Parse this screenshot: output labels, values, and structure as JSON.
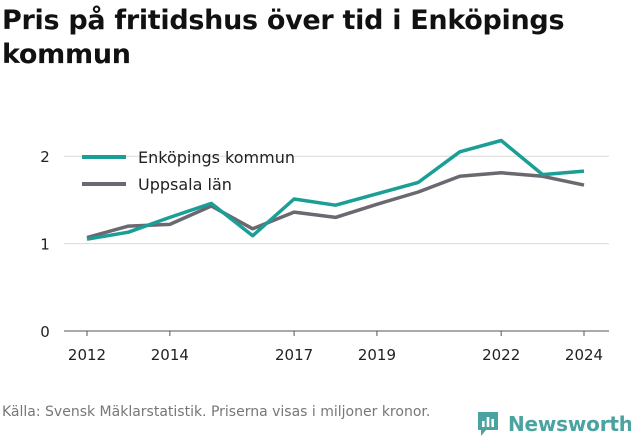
{
  "header": {
    "title": "Pris på fritidshus över tid i Enköpings kommun"
  },
  "footer": {
    "source": "Källa: Svensk Mäklarstatistik. Priserna visas i miljoner kronor."
  },
  "brand": {
    "name": "Newsworthy",
    "icon": "newsworthy-logo-icon",
    "color": "#4aa3a0"
  },
  "chart_data": {
    "type": "line",
    "title": "Pris på fritidshus över tid i Enköpings kommun",
    "xlabel": "",
    "ylabel": "",
    "x": [
      2012,
      2013,
      2014,
      2015,
      2016,
      2017,
      2018,
      2019,
      2020,
      2021,
      2022,
      2023,
      2024
    ],
    "x_ticks": [
      2012,
      2014,
      2017,
      2019,
      2022,
      2024
    ],
    "y_ticks": [
      0,
      1,
      2
    ],
    "xlim": [
      2012,
      2024
    ],
    "ylim": [
      0,
      2.3
    ],
    "grid": "horizontal",
    "legend_position": "top-left",
    "series": [
      {
        "name": "Enköpings kommun",
        "color": "#1a9e96",
        "values": [
          1.05,
          1.13,
          1.3,
          1.46,
          1.09,
          1.51,
          1.44,
          1.57,
          1.7,
          2.05,
          2.18,
          1.79,
          1.83
        ]
      },
      {
        "name": "Uppsala län",
        "color": "#6b6870",
        "values": [
          1.07,
          1.2,
          1.22,
          1.43,
          1.17,
          1.36,
          1.3,
          1.45,
          1.59,
          1.77,
          1.81,
          1.77,
          1.67
        ]
      }
    ]
  }
}
